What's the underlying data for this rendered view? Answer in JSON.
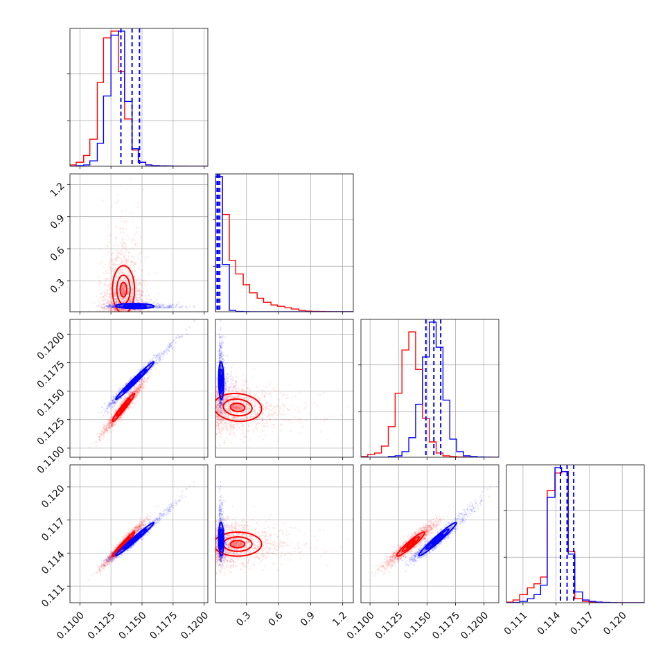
{
  "chart_data": {
    "type": "corner",
    "grid": true,
    "legend": "none",
    "colors": {
      "red_series": "#ff0000",
      "blue_series": "#0000ff"
    },
    "parameters": [
      {
        "key": "p1",
        "range": [
          0.1092,
          0.1203
        ],
        "ticks": [
          0.11,
          0.1125,
          0.115,
          0.1175,
          0.12
        ],
        "tick_labels": [
          "0.1100",
          "0.1125",
          "0.1150",
          "0.1175",
          "0.1200"
        ]
      },
      {
        "key": "p2",
        "range": [
          0.01,
          1.3
        ],
        "ticks": [
          0.3,
          0.6,
          0.9,
          1.2
        ],
        "tick_labels": [
          "0.3",
          "0.6",
          "0.9",
          "1.2"
        ]
      },
      {
        "key": "p3",
        "range": [
          0.1092,
          0.1213
        ],
        "ticks": [
          0.11,
          0.1125,
          0.115,
          0.1175,
          0.12
        ],
        "tick_labels": [
          "0.1100",
          "0.1125",
          "0.1150",
          "0.1175",
          "0.1200"
        ]
      },
      {
        "key": "p4",
        "range": [
          0.1095,
          0.122
        ],
        "ticks": [
          0.111,
          0.114,
          0.117,
          0.12
        ],
        "tick_labels": [
          "0.111",
          "0.114",
          "0.117",
          "0.120"
        ]
      }
    ],
    "series": [
      {
        "name": "",
        "color": "#ff0000",
        "mean": [
          0.1135,
          0.18,
          0.1137,
          0.1148
        ],
        "sd": [
          0.0008,
          0.2,
          0.0009,
          0.0009
        ],
        "hist": {
          "p1": {
            "edges": [
              0.1092,
              0.1097,
              0.1103,
              0.1108,
              0.1114,
              0.1119,
              0.1125,
              0.1131,
              0.1136,
              0.1142,
              0.1147,
              0.1153,
              0.1158,
              0.1164,
              0.117,
              0.1175,
              0.1181,
              0.1186,
              0.1192,
              0.1197,
              0.1203
            ],
            "counts": [
              1,
              3,
              8,
              20,
              62,
              95,
              100,
              70,
              35,
              12,
              3,
              1,
              0.5,
              0.3,
              0.2,
              0.1,
              0.1,
              0.05,
              0.05,
              0.05
            ]
          },
          "p2": {
            "edges": [
              0.01,
              0.075,
              0.14,
              0.2,
              0.27,
              0.33,
              0.4,
              0.46,
              0.53,
              0.59,
              0.66,
              0.72,
              0.79,
              0.85,
              0.91,
              0.98,
              1.04,
              1.11,
              1.17,
              1.24,
              1.3
            ],
            "counts": [
              100,
              72,
              38,
              28,
              20,
              14,
              10,
              7,
              5,
              4,
              3,
              2,
              1,
              0.5,
              0.3,
              0.2,
              0.1,
              0.05,
              0.05,
              0.05
            ]
          },
          "p3": {
            "edges": [
              0.1092,
              0.1098,
              0.1104,
              0.111,
              0.1116,
              0.1122,
              0.1128,
              0.1134,
              0.114,
              0.1146,
              0.1152,
              0.1158,
              0.1164,
              0.117,
              0.1176,
              0.1182,
              0.1188,
              0.1194,
              0.12,
              0.1206,
              0.1213
            ],
            "counts": [
              0.5,
              2,
              3,
              8,
              22,
              46,
              77,
              90,
              63,
              28,
              11,
              3,
              1,
              0.5,
              0.2,
              0.1,
              0.05,
              0.05,
              0.05,
              0.05
            ]
          },
          "p4": {
            "edges": [
              0.1095,
              0.1101,
              0.1107,
              0.1114,
              0.112,
              0.1126,
              0.1132,
              0.1139,
              0.1145,
              0.1151,
              0.1157,
              0.1164,
              0.117,
              0.1176,
              0.1182,
              0.1189,
              0.1195,
              0.1201,
              0.1207,
              0.1214,
              0.122
            ],
            "counts": [
              0.5,
              2,
              6,
              11,
              14,
              19,
              83,
              96,
              97,
              38,
              3,
              1,
              0.5,
              0.3,
              0.2,
              0.1,
              0.05,
              0.05,
              0.05,
              0.05
            ]
          }
        }
      },
      {
        "name": "",
        "color": "#0000ff",
        "mean": [
          0.1142,
          0.045,
          0.1157,
          0.115
        ],
        "sd": [
          0.0009,
          0.02,
          0.0009,
          0.0007
        ],
        "hist": {
          "p1": {
            "edges": [
              0.1092,
              0.1097,
              0.1103,
              0.1108,
              0.1114,
              0.1119,
              0.1125,
              0.1131,
              0.1136,
              0.1142,
              0.1147,
              0.1153,
              0.1158,
              0.1164,
              0.117,
              0.1175,
              0.1181,
              0.1186,
              0.1192,
              0.1197,
              0.1203
            ],
            "counts": [
              0,
              0.5,
              1,
              4,
              17,
              52,
              97,
              100,
              48,
              13,
              3,
              1,
              0.5,
              0.3,
              0.2,
              0.1,
              0.05,
              0.05,
              0.05,
              0.05
            ]
          },
          "p2": {
            "edges": [
              0.01,
              0.075,
              0.14,
              0.2,
              0.27,
              0.33,
              0.4,
              0.46,
              0.53,
              0.59,
              0.66,
              0.72,
              0.79,
              0.85,
              0.91,
              0.98,
              1.04,
              1.11,
              1.17,
              1.24,
              1.3
            ],
            "counts": [
              100,
              35,
              1,
              0.2,
              0.1,
              0.05,
              0,
              0,
              0,
              0,
              0,
              0,
              0,
              0,
              0,
              0,
              0,
              0,
              0,
              0
            ]
          },
          "p3": {
            "edges": [
              0.1092,
              0.1098,
              0.1104,
              0.111,
              0.1116,
              0.1122,
              0.1128,
              0.1134,
              0.114,
              0.1146,
              0.1152,
              0.1158,
              0.1164,
              0.117,
              0.1176,
              0.1182,
              0.1188,
              0.1194,
              0.12,
              0.1206,
              0.1213
            ],
            "counts": [
              0,
              0,
              0,
              0,
              0.5,
              1,
              4,
              14,
              38,
              72,
              97,
              79,
              41,
              13,
              4,
              1,
              0.5,
              0.2,
              0.1,
              0.05
            ]
          },
          "p4": {
            "edges": [
              0.1095,
              0.1101,
              0.1107,
              0.1114,
              0.112,
              0.1126,
              0.1132,
              0.1139,
              0.1145,
              0.1151,
              0.1157,
              0.1164,
              0.117,
              0.1176,
              0.1182,
              0.1189,
              0.1195,
              0.1201,
              0.1207,
              0.1214,
              0.122
            ],
            "counts": [
              0,
              0.2,
              1,
              3,
              6,
              13,
              78,
              100,
              97,
              36,
              8,
              2,
              1,
              0.5,
              0.2,
              0.1,
              0.05,
              0.05,
              0.05,
              0.05
            ]
          }
        }
      }
    ],
    "quantile_lines": {
      "color": "#0000ff",
      "style": "dashed",
      "values": {
        "p1": [
          0.1133,
          0.1142,
          0.1148
        ],
        "p2": [
          0.025,
          0.035,
          0.05
        ],
        "p3": [
          0.1149,
          0.1156,
          0.1162
        ],
        "p4": [
          0.1144,
          0.115,
          0.1156
        ]
      }
    }
  }
}
